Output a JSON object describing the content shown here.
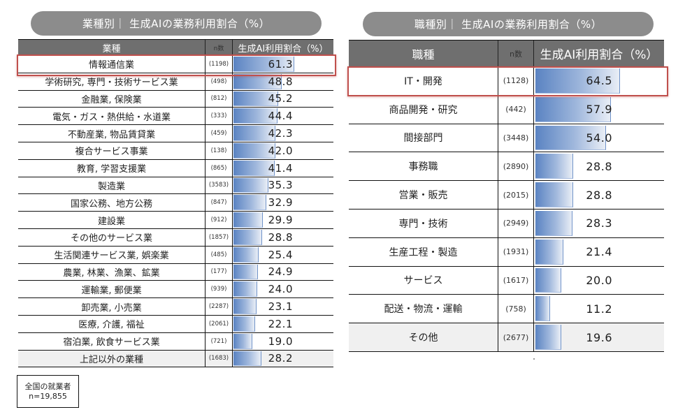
{
  "left_panel": {
    "title": "業種別｜ 生成AIの業務利用割合（%）",
    "headers": {
      "label": "業種",
      "n": "n数",
      "value": "生成AI利用割合（%）"
    },
    "rows": [
      {
        "label": "情報通信業",
        "n": "(1198)",
        "value": 61.3,
        "value_text": "61.3",
        "highlighted": true
      },
      {
        "label": "学術研究, 専門・技術サービス業",
        "n": "(498)",
        "value": 48.8,
        "value_text": "48.8"
      },
      {
        "label": "金融業, 保険業",
        "n": "(812)",
        "value": 45.2,
        "value_text": "45.2"
      },
      {
        "label": "電気・ガス・熱供給・水道業",
        "n": "(333)",
        "value": 44.4,
        "value_text": "44.4"
      },
      {
        "label": "不動産業, 物品賃貸業",
        "n": "(459)",
        "value": 42.3,
        "value_text": "42.3"
      },
      {
        "label": "複合サービス事業",
        "n": "(138)",
        "value": 42.0,
        "value_text": "42.0"
      },
      {
        "label": "教育, 学習支援業",
        "n": "(865)",
        "value": 41.4,
        "value_text": "41.4"
      },
      {
        "label": "製造業",
        "n": "(3583)",
        "value": 35.3,
        "value_text": "35.3"
      },
      {
        "label": "国家公務、地方公務",
        "n": "(847)",
        "value": 32.9,
        "value_text": "32.9"
      },
      {
        "label": "建設業",
        "n": "(912)",
        "value": 29.9,
        "value_text": "29.9"
      },
      {
        "label": "その他のサービス業",
        "n": "(1857)",
        "value": 28.8,
        "value_text": "28.8"
      },
      {
        "label": "生活関連サービス業, 娯楽業",
        "n": "(485)",
        "value": 25.4,
        "value_text": "25.4"
      },
      {
        "label": "農業, 林業、漁業、鉱業",
        "n": "(177)",
        "value": 24.9,
        "value_text": "24.9"
      },
      {
        "label": "運輸業, 郵便業",
        "n": "(939)",
        "value": 24.0,
        "value_text": "24.0"
      },
      {
        "label": "卸売業, 小売業",
        "n": "(2287)",
        "value": 23.1,
        "value_text": "23.1"
      },
      {
        "label": "医療, 介護, 福祉",
        "n": "(2061)",
        "value": 22.1,
        "value_text": "22.1"
      },
      {
        "label": "宿泊業, 飲食サービス業",
        "n": "(721)",
        "value": 19.0,
        "value_text": "19.0"
      },
      {
        "label": "上記以外の業種",
        "n": "(1683)",
        "value": 28.2,
        "value_text": "28.2"
      }
    ]
  },
  "right_panel": {
    "title": "職種別｜ 生成AIの業務利用割合（%）",
    "headers": {
      "label": "職種",
      "n": "n数",
      "value": "生成AI利用割合（%）"
    },
    "rows": [
      {
        "label": "IT・開発",
        "n": "(1128)",
        "value": 64.5,
        "value_text": "64.5",
        "highlighted": true
      },
      {
        "label": "商品開発・研究",
        "n": "(442)",
        "value": 57.9,
        "value_text": "57.9"
      },
      {
        "label": "間接部門",
        "n": "(3448)",
        "value": 54.0,
        "value_text": "54.0"
      },
      {
        "label": "事務職",
        "n": "(2890)",
        "value": 28.8,
        "value_text": "28.8"
      },
      {
        "label": "営業・販売",
        "n": "(2015)",
        "value": 28.8,
        "value_text": "28.8"
      },
      {
        "label": "専門・技術",
        "n": "(2949)",
        "value": 28.3,
        "value_text": "28.3"
      },
      {
        "label": "生産工程・製造",
        "n": "(1931)",
        "value": 21.4,
        "value_text": "21.4"
      },
      {
        "label": "サービス",
        "n": "(1617)",
        "value": 20.0,
        "value_text": "20.0"
      },
      {
        "label": "配送・物流・運輸",
        "n": "(758)",
        "value": 11.2,
        "value_text": "11.2"
      },
      {
        "label": "その他",
        "n": "(2677)",
        "value": 19.6,
        "value_text": "19.6"
      }
    ]
  },
  "note": {
    "line1": "全国の就業者",
    "line2": "n=19,855"
  },
  "colors": {
    "title_pill": "#8c8c8c",
    "header_bg": "#6f6f6f",
    "bar_start": "#5a83c2",
    "bar_end": "#e9eef6",
    "highlight": "#c0504d",
    "last_row_bg": "#f0f0f0"
  },
  "chart_data": [
    {
      "type": "bar",
      "orientation": "horizontal",
      "title": "業種別｜ 生成AIの業務利用割合（%）",
      "xlabel": "生成AI利用割合（%）",
      "ylabel": "業種",
      "categories": [
        "情報通信業",
        "学術研究, 専門・技術サービス業",
        "金融業, 保険業",
        "電気・ガス・熱供給・水道業",
        "不動産業, 物品賃貸業",
        "複合サービス事業",
        "教育, 学習支援業",
        "製造業",
        "国家公務、地方公務",
        "建設業",
        "その他のサービス業",
        "生活関連サービス業, 娯楽業",
        "農業, 林業、漁業、鉱業",
        "運輸業, 郵便業",
        "卸売業, 小売業",
        "医療, 介護, 福祉",
        "宿泊業, 飲食サービス業",
        "上記以外の業種"
      ],
      "n": [
        1198,
        498,
        812,
        333,
        459,
        138,
        865,
        3583,
        847,
        912,
        1857,
        485,
        177,
        939,
        2287,
        2061,
        721,
        1683
      ],
      "values": [
        61.3,
        48.8,
        45.2,
        44.4,
        42.3,
        42.0,
        41.4,
        35.3,
        32.9,
        29.9,
        28.8,
        25.4,
        24.9,
        24.0,
        23.1,
        22.1,
        19.0,
        28.2
      ],
      "highlighted": [
        "情報通信業"
      ],
      "grid": false,
      "legend": "none"
    },
    {
      "type": "bar",
      "orientation": "horizontal",
      "title": "職種別｜ 生成AIの業務利用割合（%）",
      "xlabel": "生成AI利用割合（%）",
      "ylabel": "職種",
      "categories": [
        "IT・開発",
        "商品開発・研究",
        "間接部門",
        "事務職",
        "営業・販売",
        "専門・技術",
        "生産工程・製造",
        "サービス",
        "配送・物流・運輸",
        "その他"
      ],
      "n": [
        1128,
        442,
        3448,
        2890,
        2015,
        2949,
        1931,
        1617,
        758,
        2677
      ],
      "values": [
        64.5,
        57.9,
        54.0,
        28.8,
        28.8,
        28.3,
        21.4,
        20.0,
        11.2,
        19.6
      ],
      "highlighted": [
        "IT・開発"
      ],
      "grid": false,
      "legend": "none",
      "annotation": "全国の就業者 n=19,855"
    }
  ]
}
